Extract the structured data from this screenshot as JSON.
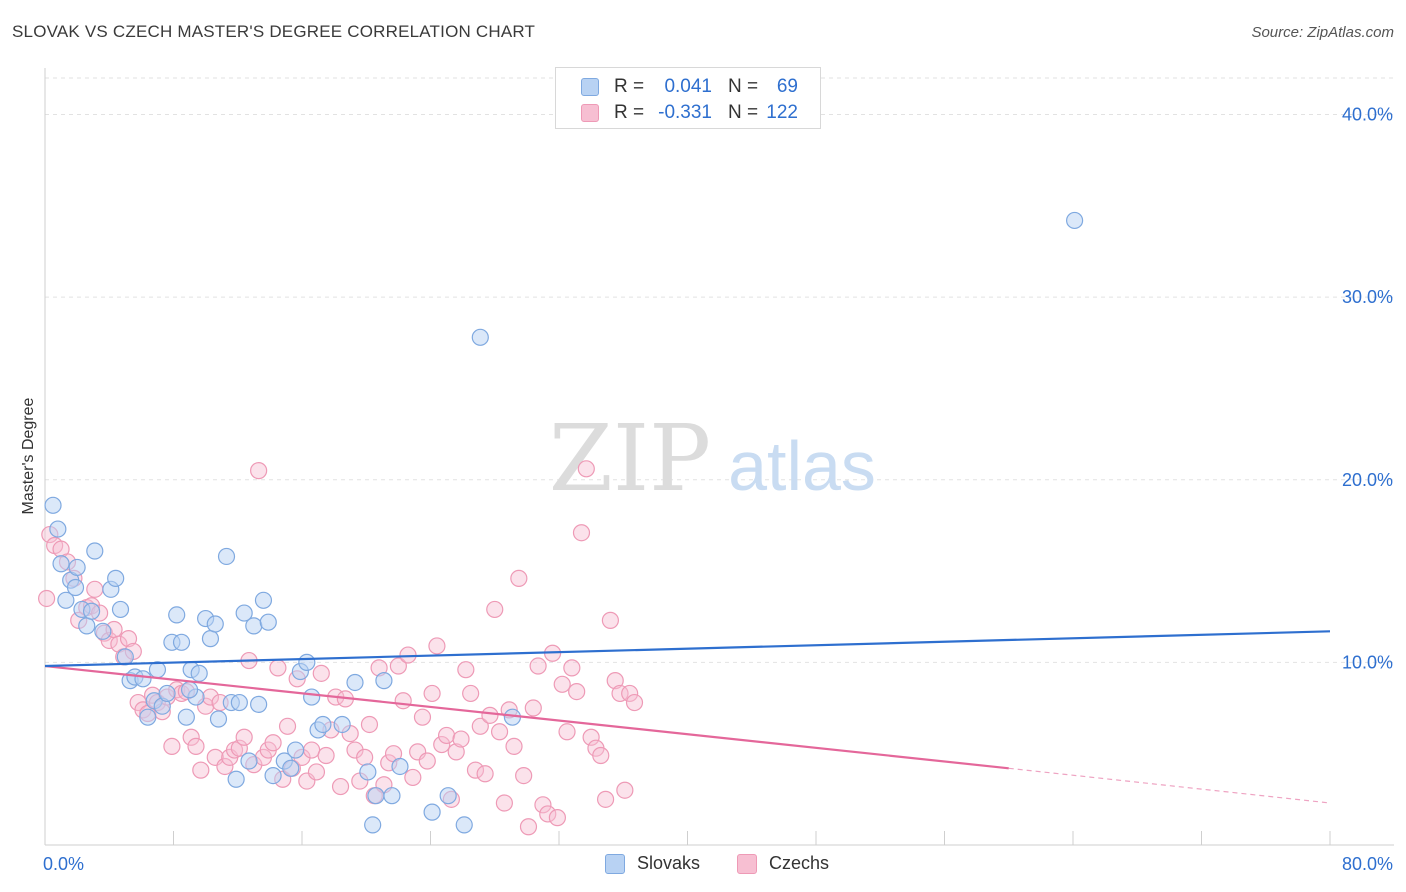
{
  "header": {
    "title": "SLOVAK VS CZECH MASTER'S DEGREE CORRELATION CHART",
    "source": "Source: ZipAtlas.com"
  },
  "watermark": {
    "zip": "ZIP",
    "atlas": "atlas"
  },
  "legend_top": {
    "rows": [
      {
        "r_label": "R =",
        "r_value": "0.041",
        "n_label": "N =",
        "n_value": "69"
      },
      {
        "r_label": "R =",
        "r_value": "-0.331",
        "n_label": "N =",
        "n_value": "122"
      }
    ]
  },
  "colors": {
    "slovaks_fill": "#b8d2f3",
    "slovaks_stroke": "#7fa9e0",
    "slovaks_line": "#2e6fcf",
    "czechs_fill": "#f7bfd2",
    "czechs_stroke": "#ee9ab6",
    "czechs_line": "#e4679a",
    "tick_label": "#2e6fcf",
    "grid": "#e2e2e2"
  },
  "chart_data": {
    "type": "scatter",
    "title": "SLOVAK VS CZECH MASTER'S DEGREE CORRELATION CHART",
    "xlabel": "",
    "ylabel": "Master's Degree",
    "xlim": [
      0,
      80
    ],
    "ylim": [
      0,
      42
    ],
    "x_tick_labels": [
      "0.0%",
      "80.0%"
    ],
    "y_ticks": [
      10,
      20,
      30,
      40
    ],
    "y_tick_labels": [
      "10.0%",
      "20.0%",
      "30.0%",
      "40.0%"
    ],
    "grid": true,
    "legend_position": "bottom",
    "series": [
      {
        "name": "Slovaks",
        "r": 0.041,
        "n": 69,
        "trend": {
          "x": [
            0,
            80
          ],
          "y": [
            9.8,
            11.7
          ]
        },
        "points": [
          [
            0.5,
            18.6
          ],
          [
            0.8,
            17.3
          ],
          [
            1.0,
            15.4
          ],
          [
            1.3,
            13.4
          ],
          [
            1.6,
            14.5
          ],
          [
            1.9,
            14.1
          ],
          [
            2.0,
            15.2
          ],
          [
            2.3,
            12.9
          ],
          [
            2.6,
            12.0
          ],
          [
            2.9,
            12.8
          ],
          [
            3.1,
            16.1
          ],
          [
            3.6,
            11.7
          ],
          [
            4.1,
            14.0
          ],
          [
            4.4,
            14.6
          ],
          [
            4.7,
            12.9
          ],
          [
            5.0,
            10.3
          ],
          [
            5.3,
            9.0
          ],
          [
            5.6,
            9.2
          ],
          [
            6.1,
            9.1
          ],
          [
            6.4,
            7.0
          ],
          [
            6.8,
            7.9
          ],
          [
            7.0,
            9.6
          ],
          [
            7.3,
            7.6
          ],
          [
            7.6,
            8.3
          ],
          [
            7.9,
            11.1
          ],
          [
            8.2,
            12.6
          ],
          [
            8.5,
            11.1
          ],
          [
            8.8,
            7.0
          ],
          [
            9.1,
            9.6
          ],
          [
            9.4,
            8.1
          ],
          [
            9.6,
            9.4
          ],
          [
            10.0,
            12.4
          ],
          [
            10.3,
            11.3
          ],
          [
            10.6,
            12.1
          ],
          [
            10.8,
            6.9
          ],
          [
            11.3,
            15.8
          ],
          [
            11.6,
            7.8
          ],
          [
            11.9,
            3.6
          ],
          [
            12.1,
            7.8
          ],
          [
            12.4,
            12.7
          ],
          [
            12.7,
            4.6
          ],
          [
            13.0,
            12.0
          ],
          [
            13.3,
            7.7
          ],
          [
            13.6,
            13.4
          ],
          [
            13.9,
            12.2
          ],
          [
            14.2,
            3.8
          ],
          [
            14.9,
            4.6
          ],
          [
            15.3,
            4.2
          ],
          [
            15.6,
            5.2
          ],
          [
            15.9,
            9.5
          ],
          [
            16.3,
            10.0
          ],
          [
            16.6,
            8.1
          ],
          [
            17.0,
            6.3
          ],
          [
            17.3,
            6.6
          ],
          [
            18.5,
            6.6
          ],
          [
            19.3,
            8.9
          ],
          [
            20.1,
            4.0
          ],
          [
            20.6,
            2.7
          ],
          [
            21.1,
            9.0
          ],
          [
            21.6,
            2.7
          ],
          [
            22.1,
            4.3
          ],
          [
            24.1,
            1.8
          ],
          [
            25.1,
            2.7
          ],
          [
            26.1,
            1.1
          ],
          [
            27.1,
            27.8
          ],
          [
            29.1,
            7.0
          ],
          [
            20.4,
            1.1
          ],
          [
            64.1,
            34.2
          ],
          [
            9.0,
            8.5
          ]
        ]
      },
      {
        "name": "Czechs",
        "r": -0.331,
        "n": 122,
        "trend_solid": {
          "x": [
            0,
            60
          ],
          "y": [
            9.8,
            4.2
          ]
        },
        "trend_dashed": {
          "x": [
            60,
            80
          ],
          "y": [
            4.2,
            2.3
          ]
        },
        "points": [
          [
            0.3,
            17.0
          ],
          [
            0.6,
            16.4
          ],
          [
            1.0,
            16.2
          ],
          [
            1.4,
            15.5
          ],
          [
            1.8,
            14.6
          ],
          [
            2.1,
            12.3
          ],
          [
            2.6,
            13.0
          ],
          [
            2.9,
            13.1
          ],
          [
            3.1,
            14.0
          ],
          [
            3.4,
            12.7
          ],
          [
            3.7,
            11.6
          ],
          [
            4.0,
            11.2
          ],
          [
            4.3,
            11.8
          ],
          [
            4.6,
            11.0
          ],
          [
            4.9,
            10.3
          ],
          [
            5.2,
            11.3
          ],
          [
            5.5,
            10.6
          ],
          [
            5.8,
            7.8
          ],
          [
            6.1,
            7.4
          ],
          [
            6.4,
            7.2
          ],
          [
            6.7,
            8.2
          ],
          [
            7.0,
            7.8
          ],
          [
            7.3,
            7.3
          ],
          [
            7.6,
            8.1
          ],
          [
            7.9,
            5.4
          ],
          [
            8.2,
            8.5
          ],
          [
            8.5,
            8.3
          ],
          [
            8.8,
            8.4
          ],
          [
            9.1,
            5.9
          ],
          [
            9.4,
            5.4
          ],
          [
            9.7,
            4.1
          ],
          [
            10.0,
            7.6
          ],
          [
            10.3,
            8.1
          ],
          [
            10.6,
            4.8
          ],
          [
            10.9,
            7.8
          ],
          [
            11.2,
            4.3
          ],
          [
            11.5,
            4.8
          ],
          [
            11.8,
            5.2
          ],
          [
            12.1,
            5.3
          ],
          [
            12.4,
            5.9
          ],
          [
            12.7,
            10.1
          ],
          [
            13.0,
            4.4
          ],
          [
            13.3,
            20.5
          ],
          [
            13.6,
            4.8
          ],
          [
            13.9,
            5.2
          ],
          [
            14.2,
            5.6
          ],
          [
            14.5,
            9.7
          ],
          [
            14.8,
            3.6
          ],
          [
            15.1,
            6.5
          ],
          [
            15.4,
            4.2
          ],
          [
            15.7,
            9.1
          ],
          [
            16.0,
            4.8
          ],
          [
            16.3,
            3.5
          ],
          [
            16.6,
            5.2
          ],
          [
            16.9,
            4.0
          ],
          [
            17.2,
            9.4
          ],
          [
            17.5,
            4.9
          ],
          [
            17.8,
            6.3
          ],
          [
            18.1,
            8.1
          ],
          [
            18.4,
            3.2
          ],
          [
            18.7,
            8.0
          ],
          [
            19.0,
            6.1
          ],
          [
            19.3,
            5.2
          ],
          [
            19.6,
            3.5
          ],
          [
            19.9,
            4.8
          ],
          [
            20.2,
            6.6
          ],
          [
            20.5,
            2.7
          ],
          [
            20.8,
            9.7
          ],
          [
            21.1,
            3.3
          ],
          [
            21.4,
            4.5
          ],
          [
            21.7,
            5.0
          ],
          [
            22.0,
            9.8
          ],
          [
            22.3,
            7.9
          ],
          [
            22.6,
            10.4
          ],
          [
            22.9,
            3.7
          ],
          [
            23.2,
            5.1
          ],
          [
            23.5,
            7.0
          ],
          [
            23.8,
            4.6
          ],
          [
            24.1,
            8.3
          ],
          [
            24.4,
            10.9
          ],
          [
            24.7,
            5.5
          ],
          [
            25.0,
            6.0
          ],
          [
            25.3,
            2.5
          ],
          [
            25.6,
            5.1
          ],
          [
            25.9,
            5.8
          ],
          [
            26.2,
            9.6
          ],
          [
            26.5,
            8.3
          ],
          [
            26.8,
            4.1
          ],
          [
            27.1,
            6.5
          ],
          [
            27.4,
            3.9
          ],
          [
            27.7,
            7.1
          ],
          [
            28.0,
            12.9
          ],
          [
            28.3,
            6.2
          ],
          [
            28.6,
            2.3
          ],
          [
            28.9,
            7.4
          ],
          [
            29.2,
            5.4
          ],
          [
            29.5,
            14.6
          ],
          [
            29.8,
            3.8
          ],
          [
            30.1,
            1.0
          ],
          [
            30.4,
            7.5
          ],
          [
            30.7,
            9.8
          ],
          [
            31.0,
            2.2
          ],
          [
            31.3,
            1.7
          ],
          [
            31.6,
            10.5
          ],
          [
            31.9,
            1.5
          ],
          [
            32.2,
            8.8
          ],
          [
            32.5,
            6.2
          ],
          [
            32.8,
            9.7
          ],
          [
            33.1,
            8.4
          ],
          [
            33.4,
            17.1
          ],
          [
            33.7,
            20.6
          ],
          [
            34.0,
            5.9
          ],
          [
            34.3,
            5.3
          ],
          [
            34.6,
            4.9
          ],
          [
            34.9,
            2.5
          ],
          [
            35.2,
            12.3
          ],
          [
            35.5,
            9.0
          ],
          [
            35.8,
            8.3
          ],
          [
            36.1,
            3.0
          ],
          [
            36.4,
            8.3
          ],
          [
            36.7,
            7.8
          ],
          [
            0.1,
            13.5
          ]
        ]
      }
    ]
  }
}
